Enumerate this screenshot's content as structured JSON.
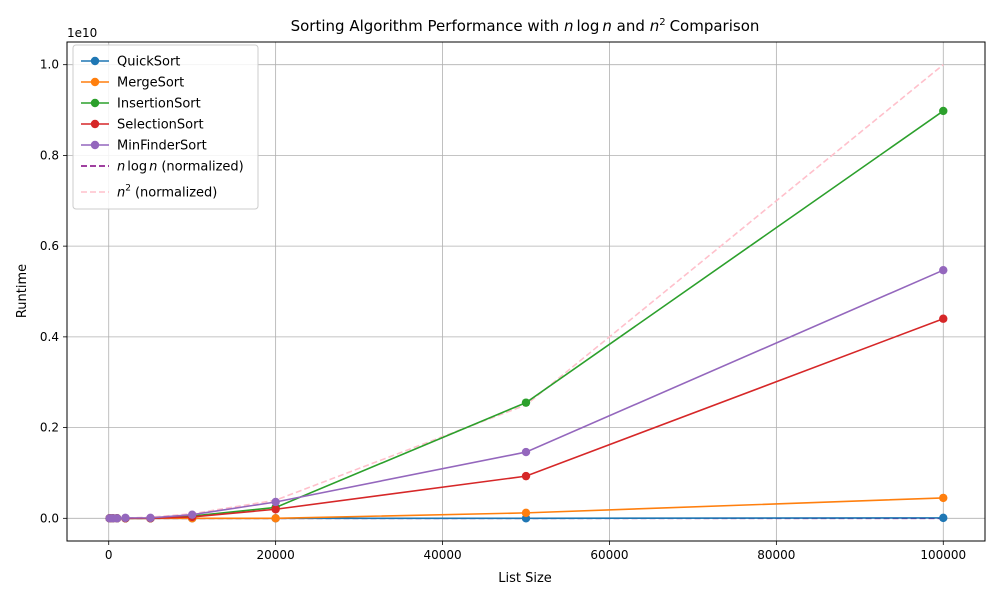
{
  "chart_data": {
    "type": "line",
    "title": "Sorting Algorithm Performance with",
    "title_mid1": "n",
    "title_mid2": "log",
    "title_mid3": "n",
    "title_mid4": "and",
    "title_mid5": "n",
    "title_sup": "2",
    "title_end": "Comparison",
    "xlabel": "List Size",
    "ylabel": "Runtime",
    "y_offset_label": "1e10",
    "xlim": [
      -5000,
      105000
    ],
    "ylim": [
      -0.05,
      1.05
    ],
    "y_scale_note": "values in units of 1e10",
    "x_ticks": [
      0,
      20000,
      40000,
      60000,
      80000,
      100000
    ],
    "x_tick_labels": [
      "0",
      "20000",
      "40000",
      "60000",
      "80000",
      "100000"
    ],
    "y_ticks": [
      0.0,
      0.2,
      0.4,
      0.6,
      0.8,
      1.0
    ],
    "y_tick_labels": [
      "0.0",
      "0.2",
      "0.4",
      "0.6",
      "0.8",
      "1.0"
    ],
    "grid": true,
    "legend_position": "top-left",
    "x": [
      100,
      500,
      1000,
      2000,
      5000,
      10000,
      20000,
      50000,
      100000
    ],
    "series": [
      {
        "name": "QuickSort",
        "color": "#1f77b4",
        "style": "solid",
        "marker": true,
        "values": [
          0.0,
          0.0,
          0.0,
          0.0,
          0.0,
          0.0,
          0.0,
          0.0,
          0.001
        ]
      },
      {
        "name": "MergeSort",
        "color": "#ff7f0e",
        "style": "solid",
        "marker": true,
        "values": [
          0.0,
          0.0,
          0.0,
          0.0,
          0.0,
          0.0,
          0.0,
          0.012,
          0.045
        ]
      },
      {
        "name": "InsertionSort",
        "color": "#2ca02c",
        "style": "solid",
        "marker": true,
        "values": [
          0.0,
          0.0,
          0.0,
          0.0,
          0.0,
          0.005,
          0.024,
          0.255,
          0.898
        ]
      },
      {
        "name": "SelectionSort",
        "color": "#d62728",
        "style": "solid",
        "marker": true,
        "values": [
          0.0,
          0.0,
          0.0,
          0.0,
          0.0,
          0.003,
          0.02,
          0.093,
          0.44
        ]
      },
      {
        "name": "MinFinderSort",
        "color": "#9467bd",
        "style": "solid",
        "marker": true,
        "values": [
          0.0,
          0.0,
          0.0,
          0.001,
          0.001,
          0.008,
          0.036,
          0.146,
          0.547
        ]
      }
    ],
    "reference_series": [
      {
        "name_parts": [
          "n",
          "log",
          "n",
          "(normalized)"
        ],
        "color": "#800080",
        "style": "dashed",
        "values": [
          0.0,
          0.0,
          0.0,
          0.0,
          0.0,
          0.0,
          0.0,
          0.0,
          0.0
        ]
      },
      {
        "name_parts": [
          "n",
          "2",
          "(normalized)"
        ],
        "color": "#ffc0cb",
        "style": "dashed",
        "values": [
          0.0,
          0.0,
          0.0,
          0.0004,
          0.0025,
          0.01,
          0.04,
          0.25,
          1.0
        ]
      }
    ]
  }
}
